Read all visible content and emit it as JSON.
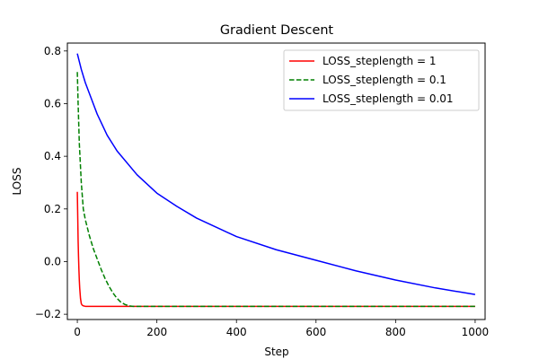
{
  "chart_data": {
    "type": "line",
    "title": "Gradient Descent",
    "xlabel": "Step",
    "ylabel": "LOSS",
    "xlim": [
      -25,
      1025
    ],
    "ylim": [
      -0.22,
      0.83
    ],
    "xticks": [
      0,
      200,
      400,
      600,
      800,
      1000
    ],
    "yticks": [
      -0.2,
      0.0,
      0.2,
      0.4,
      0.6,
      0.8
    ],
    "xtick_labels": [
      "0",
      "200",
      "400",
      "600",
      "800",
      "1000"
    ],
    "ytick_labels": [
      "−0.2",
      "0.0",
      "0.2",
      "0.4",
      "0.6",
      "0.8"
    ],
    "grid": false,
    "legend_position": "top-right",
    "series": [
      {
        "name": "LOSS_steplength = 1",
        "color": "#ff0000",
        "dash": "solid",
        "x": [
          0,
          1,
          2,
          3,
          4,
          5,
          6,
          8,
          10,
          12,
          15,
          20,
          30,
          50,
          100,
          200,
          400,
          600,
          800,
          1000
        ],
        "y": [
          0.265,
          0.175,
          0.08,
          0.02,
          -0.03,
          -0.07,
          -0.1,
          -0.14,
          -0.16,
          -0.165,
          -0.168,
          -0.17,
          -0.17,
          -0.17,
          -0.17,
          -0.17,
          -0.17,
          -0.17,
          -0.17,
          -0.17
        ]
      },
      {
        "name": "LOSS_steplength = 0.1",
        "color": "#008000",
        "dash": "dashed",
        "x": [
          0,
          2,
          5,
          10,
          15,
          20,
          30,
          40,
          50,
          60,
          70,
          80,
          90,
          100,
          110,
          120,
          130,
          140,
          150,
          200,
          400,
          600,
          800,
          1000
        ],
        "y": [
          0.72,
          0.6,
          0.45,
          0.3,
          0.2,
          0.16,
          0.1,
          0.05,
          0.01,
          -0.03,
          -0.065,
          -0.095,
          -0.12,
          -0.14,
          -0.155,
          -0.163,
          -0.168,
          -0.17,
          -0.17,
          -0.17,
          -0.17,
          -0.17,
          -0.17,
          -0.17
        ]
      },
      {
        "name": "LOSS_steplength = 0.01",
        "color": "#0000ff",
        "dash": "solid",
        "x": [
          0,
          10,
          20,
          30,
          40,
          50,
          75,
          100,
          150,
          200,
          250,
          300,
          400,
          500,
          600,
          700,
          800,
          900,
          1000
        ],
        "y": [
          0.79,
          0.73,
          0.68,
          0.64,
          0.6,
          0.56,
          0.48,
          0.42,
          0.33,
          0.26,
          0.21,
          0.165,
          0.095,
          0.045,
          0.005,
          -0.035,
          -0.07,
          -0.1,
          -0.125
        ]
      }
    ]
  }
}
